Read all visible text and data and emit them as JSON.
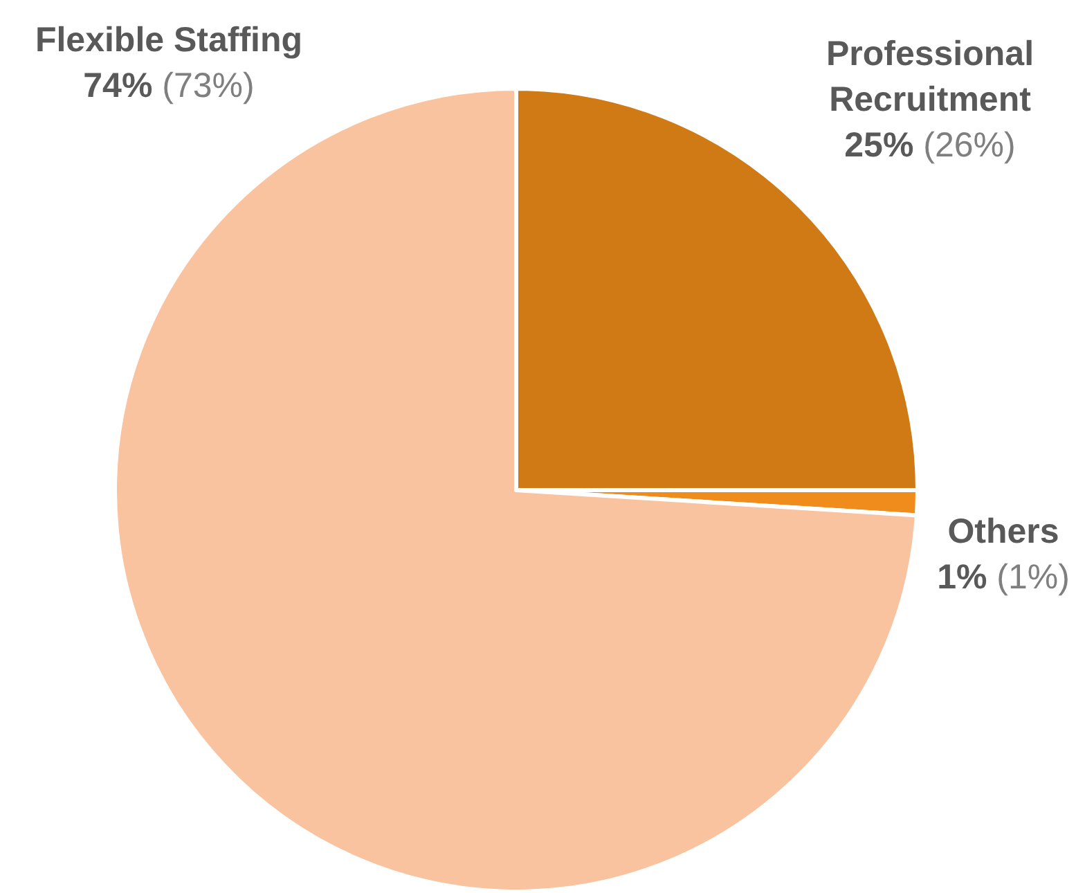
{
  "chart_data": {
    "type": "pie",
    "categories": [
      "Professional Recruitment",
      "Others",
      "Flexible Staffing"
    ],
    "values": [
      25,
      1,
      74
    ],
    "colors": [
      "#d07a16",
      "#f08c1c",
      "#f9c3a0"
    ],
    "value_labels": [
      "25% (26%)",
      "1% (1%)",
      "74% (73%)"
    ]
  }
}
